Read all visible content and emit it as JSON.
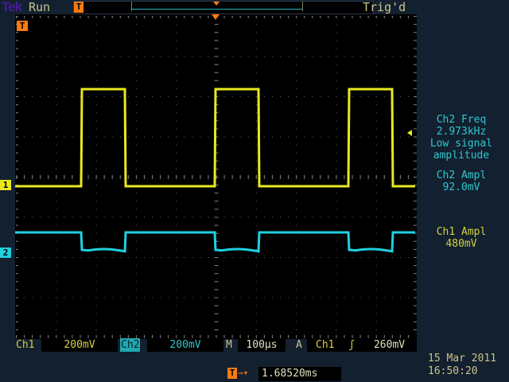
{
  "header": {
    "brand": "Tek",
    "state": "Run",
    "trigger_status": "Trig'd"
  },
  "colors": {
    "ch1": "#e8e820",
    "ch2": "#20d0e0",
    "trigger": "#ff7a10"
  },
  "measurements": [
    {
      "lines": [
        "Ch2 Freq",
        "2.973kHz",
        "Low signal",
        "amplitude"
      ],
      "channel": "ch2"
    },
    {
      "lines": [
        "Ch2 Ampl",
        "92.0mV"
      ],
      "channel": "ch2"
    },
    {
      "lines": [
        "Ch1 Ampl",
        "480mV"
      ],
      "channel": "ch1"
    }
  ],
  "footer": {
    "ch1_label": "Ch1",
    "ch1_scale": "200mV",
    "ch2_label": "Ch2",
    "ch2_scale": "200mV",
    "timebase_label": "M",
    "timebase": "100µs",
    "trigger_label": "A",
    "trigger_source": "Ch1",
    "trigger_slope_icon": "rising-edge",
    "trigger_slope_glyph": "ʃ",
    "trigger_level": "260mV",
    "trigger_position": "1.68520ms",
    "date": "15 Mar 2011",
    "time": "16:50:20"
  },
  "markers": {
    "ch1": "1",
    "ch2": "2",
    "trigger": "T"
  }
}
